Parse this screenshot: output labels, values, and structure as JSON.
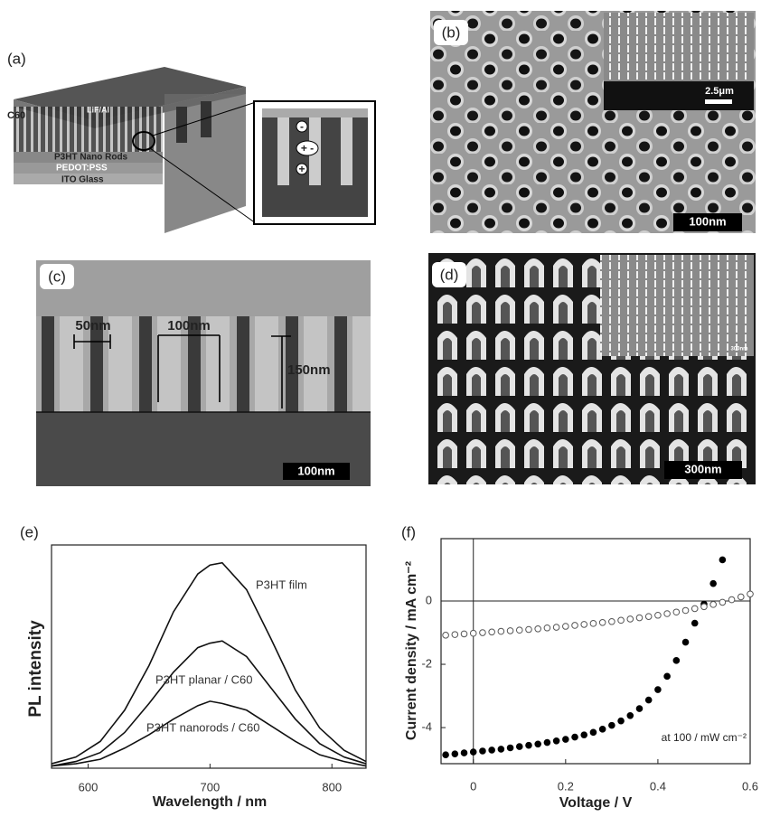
{
  "panels": {
    "a": {
      "label": "(a)",
      "layers": [
        "LiF/Al",
        "C60",
        "P3HT Nano Rods",
        "PEDOT:PSS",
        "ITO Glass"
      ],
      "charges": [
        "-",
        "+ -",
        "+"
      ]
    },
    "b": {
      "label": "(b)",
      "scale": "100nm",
      "inset_scale": "2.5μm"
    },
    "c": {
      "label": "(c)",
      "dims": [
        "50nm",
        "100nm",
        "150nm"
      ],
      "scale": "100nm"
    },
    "d": {
      "label": "(d)",
      "scale": "300nm",
      "inset_scale": "300nm"
    }
  },
  "chart_data": [
    {
      "type": "line",
      "label": "(e)",
      "xlabel": "Wavelength / nm",
      "ylabel": "PL intensity",
      "x": [
        570,
        590,
        610,
        630,
        650,
        670,
        690,
        700,
        710,
        730,
        750,
        770,
        790,
        810,
        828
      ],
      "series": [
        {
          "name": "P3HT film",
          "color": "#111111",
          "values": [
            2,
            5,
            12,
            26,
            46,
            70,
            87,
            91,
            92,
            80,
            58,
            35,
            18,
            8,
            3
          ]
        },
        {
          "name": "P3HT planar / C60",
          "color": "#111111",
          "values": [
            1,
            3,
            7,
            16,
            29,
            43,
            54,
            56,
            57,
            50,
            36,
            22,
            11,
            5,
            2
          ]
        },
        {
          "name": "P3HT nanorods / C60",
          "color": "#111111",
          "values": [
            1,
            2,
            4,
            9,
            15,
            22,
            28,
            30,
            29,
            26,
            19,
            12,
            6,
            3,
            1
          ]
        }
      ],
      "xlim": [
        570,
        828
      ],
      "xticks": [
        600,
        700,
        800
      ],
      "ylim": [
        0,
        100
      ]
    },
    {
      "type": "scatter",
      "label": "(f)",
      "xlabel": "Voltage / V",
      "ylabel": "Current density / mA cm⁻²",
      "annotation": "at 100 / mW cm⁻²",
      "x": [
        -0.06,
        -0.04,
        -0.02,
        0,
        0.02,
        0.04,
        0.06,
        0.08,
        0.1,
        0.12,
        0.14,
        0.16,
        0.18,
        0.2,
        0.22,
        0.24,
        0.26,
        0.28,
        0.3,
        0.32,
        0.34,
        0.36,
        0.38,
        0.4,
        0.42,
        0.44,
        0.46,
        0.48,
        0.5,
        0.52,
        0.54,
        0.56,
        0.58,
        0.6
      ],
      "series": [
        {
          "color": "#000000",
          "edgecolor": "#000000",
          "values": [
            -4.86,
            -4.83,
            -4.8,
            -4.77,
            -4.74,
            -4.71,
            -4.68,
            -4.64,
            -4.6,
            -4.56,
            -4.52,
            -4.47,
            -4.42,
            -4.37,
            -4.3,
            -4.23,
            -4.15,
            -4.05,
            -3.93,
            -3.79,
            -3.62,
            -3.4,
            -3.13,
            -2.8,
            -2.38,
            -1.88,
            -1.3,
            -0.7,
            -0.1,
            0.55,
            1.3,
            null,
            null,
            null
          ]
        },
        {
          "color": "#ffffff",
          "edgecolor": "#555555",
          "values": [
            -1.08,
            -1.06,
            -1.04,
            -1.02,
            -1.0,
            -0.98,
            -0.96,
            -0.94,
            -0.92,
            -0.9,
            -0.88,
            -0.85,
            -0.83,
            -0.8,
            -0.77,
            -0.74,
            -0.71,
            -0.68,
            -0.65,
            -0.61,
            -0.57,
            -0.53,
            -0.49,
            -0.45,
            -0.4,
            -0.35,
            -0.3,
            -0.24,
            -0.18,
            -0.11,
            -0.04,
            0.04,
            0.13,
            0.22
          ]
        }
      ],
      "xlim": [
        -0.07,
        0.6
      ],
      "xticks": [
        0,
        0.2,
        0.4,
        0.6
      ],
      "ylim": [
        -5.14,
        1.97
      ],
      "yticks": [
        0,
        -2,
        -4
      ]
    }
  ]
}
